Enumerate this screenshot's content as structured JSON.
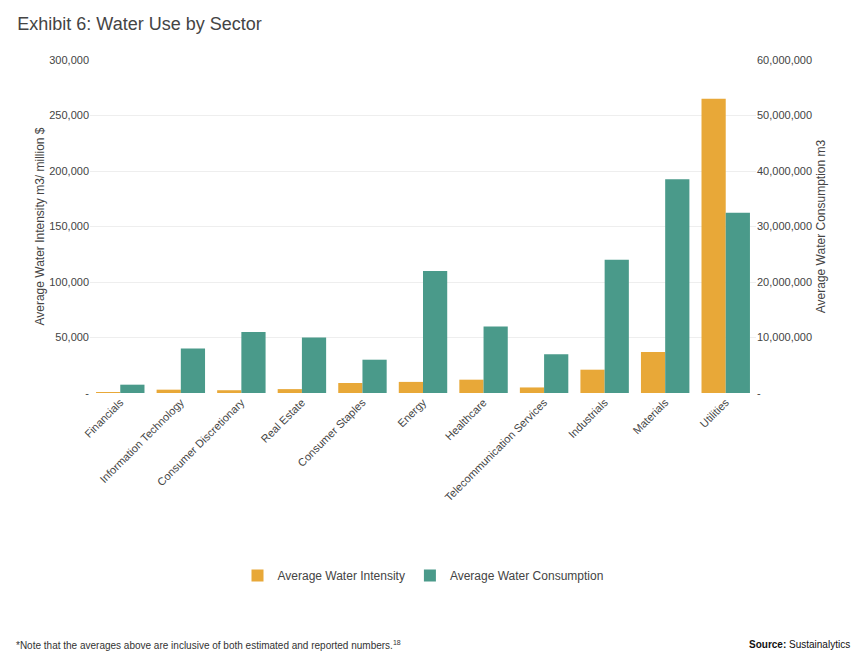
{
  "chart_data": {
    "type": "bar",
    "title": "Exhibit 6: Water Use by Sector",
    "categories": [
      "Financials",
      "Information Technology",
      "Consumer Discretionary",
      "Real Estate",
      "Consumer Staples",
      "Energy",
      "Healthcare",
      "Telecommunication Services",
      "Industrials",
      "Materials",
      "Utilities"
    ],
    "series": [
      {
        "name": "Average Water Intensity",
        "color": "#E8A838",
        "values": [
          300,
          3000,
          2500,
          3500,
          9000,
          10000,
          12000,
          5000,
          21000,
          37000,
          265000
        ]
      },
      {
        "name": "Average Water Consumption",
        "color": "#4A9A8A",
        "axis": "y2",
        "values": [
          1500000,
          8000000,
          11000000,
          10000000,
          6000000,
          22000000,
          12000000,
          7000000,
          24000000,
          38500000,
          32500000
        ]
      }
    ],
    "ylabel": "Average Water Intensity m3/ million $",
    "y2label": "Average Water Consumption m3",
    "ylim": [
      0,
      300000
    ],
    "yticks": [
      {
        "value": 0,
        "label": "-"
      },
      {
        "value": 50000,
        "label": "50,000"
      },
      {
        "value": 100000,
        "label": "100,000"
      },
      {
        "value": 150000,
        "label": "150,000"
      },
      {
        "value": 200000,
        "label": "200,000"
      },
      {
        "value": 250000,
        "label": "250,000"
      },
      {
        "value": 300000,
        "label": "300,000"
      }
    ],
    "y2lim": [
      0,
      60000000
    ],
    "y2ticks": [
      {
        "value": 0,
        "label": "-"
      },
      {
        "value": 10000000,
        "label": "10,000,000"
      },
      {
        "value": 20000000,
        "label": "20,000,000"
      },
      {
        "value": 30000000,
        "label": "30,000,000"
      },
      {
        "value": 40000000,
        "label": "40,000,000"
      },
      {
        "value": 50000000,
        "label": "50,000,000"
      },
      {
        "value": 60000000,
        "label": "60,000,000"
      }
    ],
    "grid": true,
    "legend": "bottom",
    "annotations": [
      "*Note that the averages above are inclusive of both estimated and reported numbers.",
      "18",
      "Source:",
      "Sustainalytics"
    ]
  }
}
